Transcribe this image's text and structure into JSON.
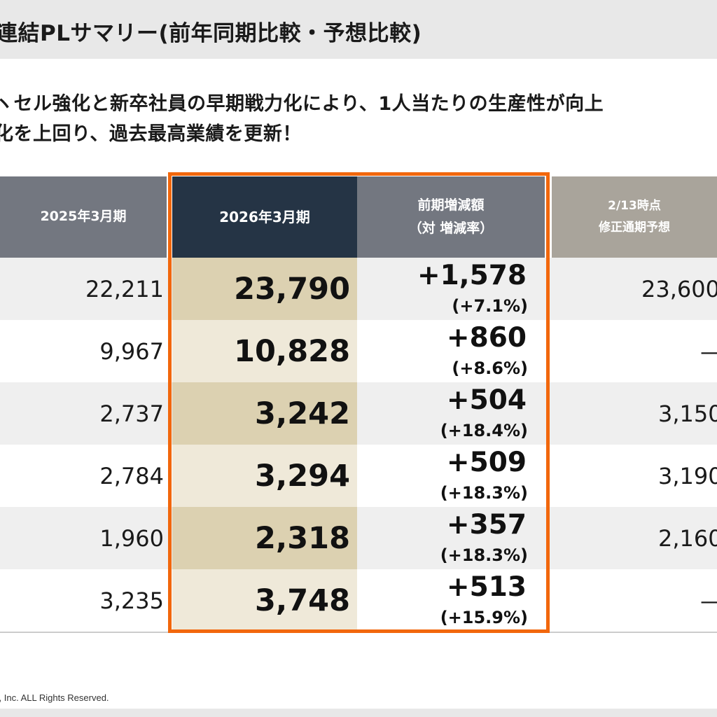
{
  "title": "連結PLサマリー(前年同期比較・予想比較)",
  "lead": {
    "line1": "ヽセル強化と新卒社員の早期戦力化により、1人当たりの生産性が向上",
    "line2": "化を上回り、過去最高業績を更新！"
  },
  "headers": {
    "prev": "2025年3月期",
    "cur": "2026年3月期",
    "diff_line1": "前期増減額",
    "diff_line2": "（対 増減率）",
    "fcst_line1": "2/13時点",
    "fcst_line2": "修正通期予想"
  },
  "rows": [
    {
      "prev": "22,211",
      "cur": "23,790",
      "diff": "+1,578",
      "pct": "(+7.1%)",
      "fcst": "23,600"
    },
    {
      "prev": "9,967",
      "cur": "10,828",
      "diff": "+860",
      "pct": "(+8.6%)",
      "fcst": "—"
    },
    {
      "prev": "2,737",
      "cur": "3,242",
      "diff": "+504",
      "pct": "(+18.4%)",
      "fcst": "3,150"
    },
    {
      "prev": "2,784",
      "cur": "3,294",
      "diff": "+509",
      "pct": "(+18.3%)",
      "fcst": "3,190"
    },
    {
      "prev": "1,960",
      "cur": "2,318",
      "diff": "+357",
      "pct": "(+18.3%)",
      "fcst": "2,160"
    },
    {
      "prev": "3,235",
      "cur": "3,748",
      "diff": "+513",
      "pct": "(+15.9%)",
      "fcst": "—"
    }
  ],
  "footer": "s, Inc. ALL Rights Reserved.",
  "colors": {
    "highlight_border": "#f2670c",
    "current_header": "#253445",
    "current_cell_dark": "#dcd1b1",
    "current_cell_light": "#efe9d9"
  }
}
